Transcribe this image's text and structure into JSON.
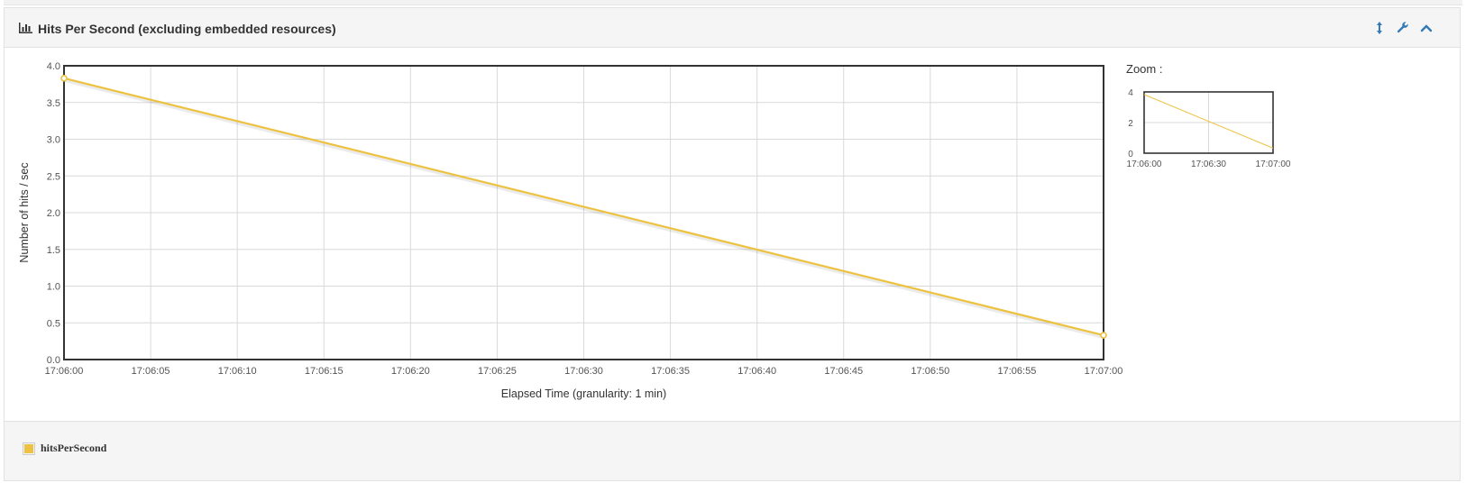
{
  "panel": {
    "title": "Hits Per Second (excluding embedded resources)",
    "title_icon": "bar-chart-icon",
    "tools": [
      {
        "name": "expand-vertical-icon"
      },
      {
        "name": "wrench-icon"
      },
      {
        "name": "chevron-up-icon"
      }
    ]
  },
  "zoom": {
    "label": "Zoom :",
    "y_ticks": [
      "4",
      "2",
      "0"
    ],
    "x_ticks": [
      "17:06:00",
      "17:06:30",
      "17:07:00"
    ]
  },
  "legend": {
    "items": [
      {
        "label": "hitsPerSecond",
        "color": "#edc240"
      }
    ]
  },
  "chart_data": {
    "type": "line",
    "title": "",
    "xlabel": "Elapsed Time (granularity: 1 min)",
    "ylabel": "Number of hits / sec",
    "x_tick_labels": [
      "17:06:00",
      "17:06:05",
      "17:06:10",
      "17:06:15",
      "17:06:20",
      "17:06:25",
      "17:06:30",
      "17:06:35",
      "17:06:40",
      "17:06:45",
      "17:06:50",
      "17:06:55",
      "17:07:00"
    ],
    "y_tick_labels": [
      "0.0",
      "0.5",
      "1.0",
      "1.5",
      "2.0",
      "2.5",
      "3.0",
      "3.5",
      "4.0"
    ],
    "xlim": [
      "17:06:00",
      "17:07:00"
    ],
    "ylim": [
      0,
      4
    ],
    "grid": true,
    "legend_position": "bottom",
    "series": [
      {
        "name": "hitsPerSecond",
        "color": "#edc240",
        "x": [
          "17:06:00",
          "17:07:00"
        ],
        "values": [
          3.83,
          0.33
        ]
      }
    ]
  }
}
